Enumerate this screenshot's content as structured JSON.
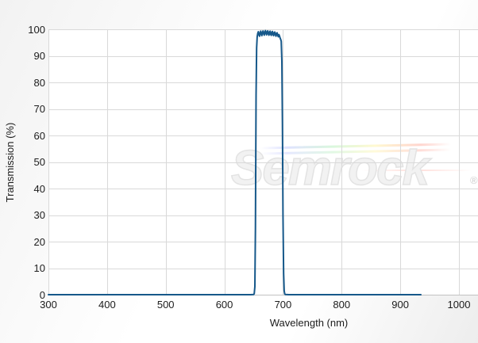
{
  "colors": {
    "line": "#16588a",
    "grid": "#d9d9d9",
    "axis_line": "#c2c2c2",
    "tick_text": "#1c1c1c",
    "plot_background": "#ffffff",
    "watermark_gray": "#e3e3e3"
  },
  "watermark": {
    "text": "Semrock",
    "registered": "®"
  },
  "chart_data": {
    "type": "line",
    "title": "",
    "xlabel": "Wavelength (nm)",
    "ylabel": "Transmission (%)",
    "xlim": [
      300,
      1000
    ],
    "ylim": [
      0,
      100
    ],
    "x_ticks": [
      300,
      400,
      500,
      600,
      700,
      800,
      900,
      1000
    ],
    "y_ticks": [
      0,
      10,
      20,
      30,
      40,
      50,
      60,
      70,
      80,
      90,
      100
    ],
    "grid": true,
    "legend_position": "none",
    "description": "Bandpass filter transmission spectrum: ~0% outside passband, ~97-99.5% rippled plateau from ~655-697 nm, steep edges near 653 and 700 nm, baseline data ends near 935 nm",
    "series": [
      {
        "name": "Transmission",
        "color": "#16588a",
        "points": [
          [
            300,
            0
          ],
          [
            350,
            0
          ],
          [
            400,
            0
          ],
          [
            450,
            0
          ],
          [
            500,
            0
          ],
          [
            550,
            0
          ],
          [
            600,
            0
          ],
          [
            630,
            0
          ],
          [
            645,
            0
          ],
          [
            650,
            0.1
          ],
          [
            651,
            0.4
          ],
          [
            652,
            3
          ],
          [
            653,
            25
          ],
          [
            654,
            75
          ],
          [
            655,
            93
          ],
          [
            656,
            97.2
          ],
          [
            657,
            98.6
          ],
          [
            658,
            99.1
          ],
          [
            659,
            98.0
          ],
          [
            660,
            97.4
          ],
          [
            661,
            98.6
          ],
          [
            662,
            99.3
          ],
          [
            663,
            98.2
          ],
          [
            664,
            97.6
          ],
          [
            665,
            98.9
          ],
          [
            666,
            99.4
          ],
          [
            667,
            98.3
          ],
          [
            668,
            97.8
          ],
          [
            669,
            99.0
          ],
          [
            670,
            99.5
          ],
          [
            671,
            98.4
          ],
          [
            672,
            97.9
          ],
          [
            673,
            99.1
          ],
          [
            674,
            99.4
          ],
          [
            675,
            98.2
          ],
          [
            676,
            97.8
          ],
          [
            677,
            99.0
          ],
          [
            678,
            99.3
          ],
          [
            679,
            98.1
          ],
          [
            680,
            97.7
          ],
          [
            681,
            98.9
          ],
          [
            682,
            99.2
          ],
          [
            683,
            98.0
          ],
          [
            684,
            97.6
          ],
          [
            685,
            98.8
          ],
          [
            686,
            99.0
          ],
          [
            687,
            97.9
          ],
          [
            688,
            97.4
          ],
          [
            689,
            98.5
          ],
          [
            690,
            98.7
          ],
          [
            691,
            97.7
          ],
          [
            692,
            97.2
          ],
          [
            693,
            98.0
          ],
          [
            694,
            97.5
          ],
          [
            695,
            96.8
          ],
          [
            696,
            96.2
          ],
          [
            697,
            95.5
          ],
          [
            698,
            88
          ],
          [
            699,
            65
          ],
          [
            700,
            30
          ],
          [
            701,
            8
          ],
          [
            702,
            1.5
          ],
          [
            703,
            0.3
          ],
          [
            704,
            0.05
          ],
          [
            710,
            0
          ],
          [
            750,
            0
          ],
          [
            800,
            0
          ],
          [
            850,
            0
          ],
          [
            900,
            0
          ],
          [
            935,
            0
          ]
        ]
      }
    ]
  }
}
